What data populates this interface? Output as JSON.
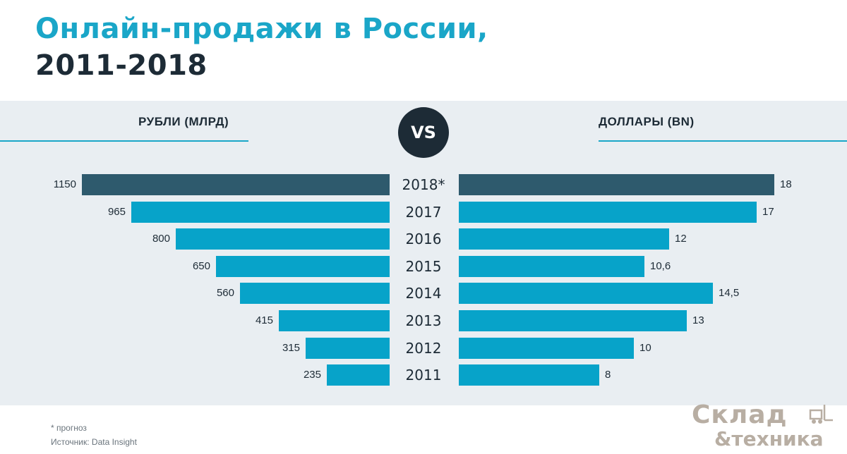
{
  "title": {
    "line1": "Онлайн-продажи в России,",
    "line2": "2011-2018"
  },
  "header": {
    "left_label": "РУБЛИ (МЛРД)",
    "right_label": "ДОЛЛАРЫ (BN)",
    "vs": "VS"
  },
  "footer": {
    "note": "* прогноз",
    "source": "Источник: Data Insight"
  },
  "logo": {
    "top": "Склад",
    "bottom": "&техника",
    "icon": "forklift-icon"
  },
  "colors": {
    "title_accent": "#1aa6c8",
    "dark": "#1d2b36",
    "bar_actual": "#07a3c9",
    "bar_forecast": "#2e5a6d",
    "panel": "#e9eef2"
  },
  "chart_data": {
    "type": "bar",
    "categories": [
      "2018*",
      "2017",
      "2016",
      "2015",
      "2014",
      "2013",
      "2012",
      "2011"
    ],
    "forecast": [
      true,
      false,
      false,
      false,
      false,
      false,
      false,
      false
    ],
    "series": [
      {
        "name": "РУБЛИ (МЛРД)",
        "values": [
          1150,
          965,
          800,
          650,
          560,
          415,
          315,
          235
        ],
        "labels": [
          "1150",
          "965",
          "800",
          "650",
          "560",
          "415",
          "315",
          "235"
        ]
      },
      {
        "name": "ДОЛЛАРЫ (BN)",
        "values": [
          18,
          17,
          12,
          10.6,
          14.5,
          13,
          10,
          8
        ],
        "labels": [
          "18",
          "17",
          "12",
          "10,6",
          "14,5",
          "13",
          "10",
          "8"
        ]
      }
    ],
    "xlim_left": [
      0,
      1150
    ],
    "xlim_right": [
      0,
      18
    ]
  }
}
